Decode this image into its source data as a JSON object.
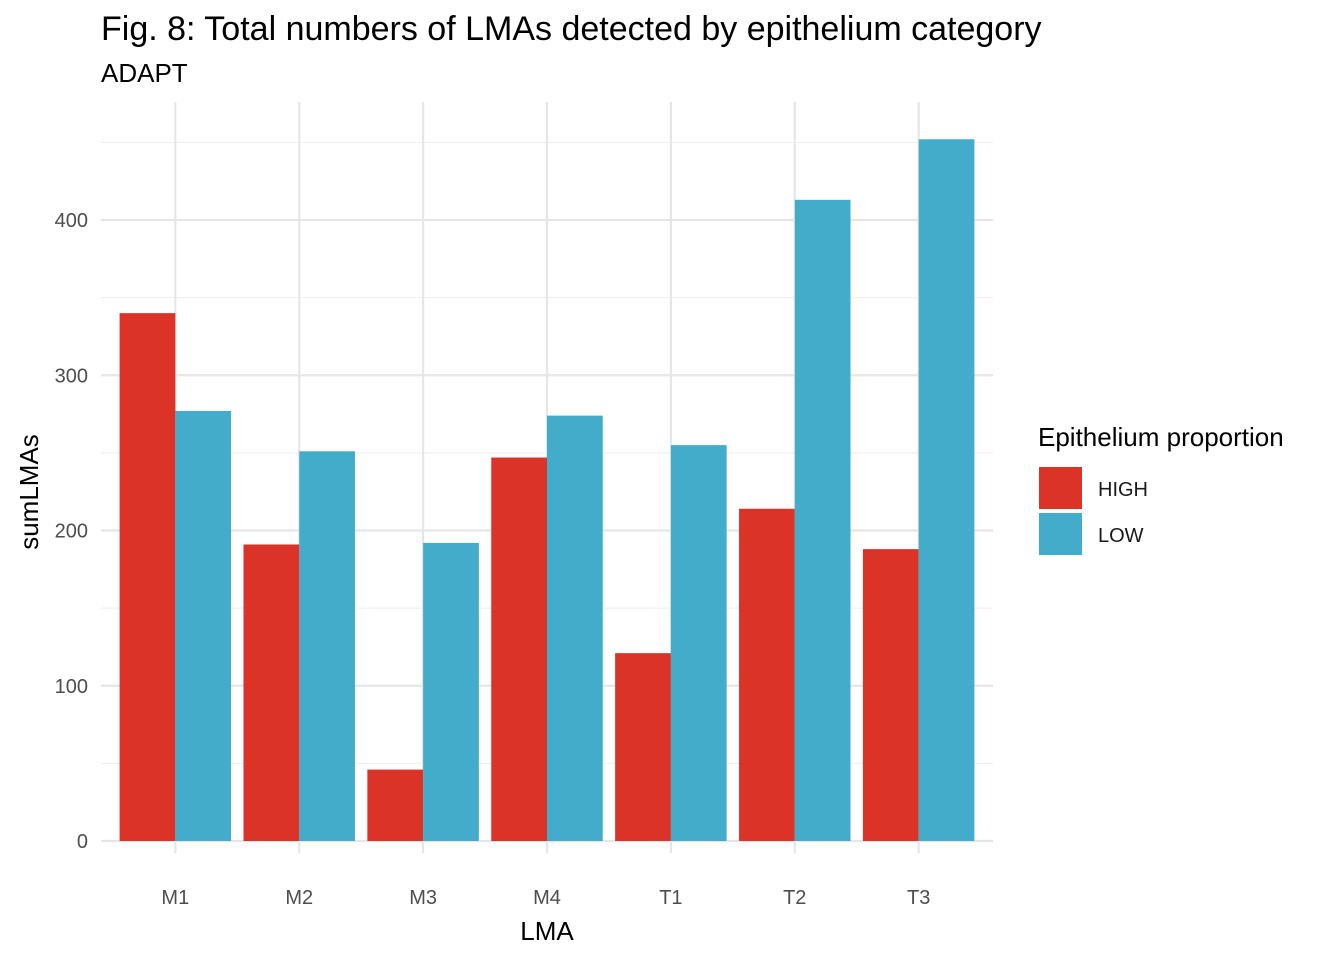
{
  "chart_data": {
    "type": "bar",
    "title": "Fig. 8: Total numbers of LMAs detected by epithelium category",
    "subtitle": "ADAPT",
    "xlabel": "LMA",
    "ylabel": "sumLMAs",
    "categories": [
      "M1",
      "M2",
      "M3",
      "M4",
      "T1",
      "T2",
      "T3"
    ],
    "series": [
      {
        "name": "HIGH",
        "color": "#dc3328",
        "values": [
          340,
          191,
          46,
          247,
          121,
          214,
          188
        ]
      },
      {
        "name": "LOW",
        "color": "#43acca",
        "values": [
          277,
          251,
          192,
          274,
          255,
          413,
          452
        ]
      }
    ],
    "yticks": [
      0,
      100,
      200,
      300,
      400
    ],
    "ylim": [
      0,
      470
    ],
    "grid": true,
    "legend": {
      "title": "Epithelium proportion",
      "position": "right"
    }
  }
}
